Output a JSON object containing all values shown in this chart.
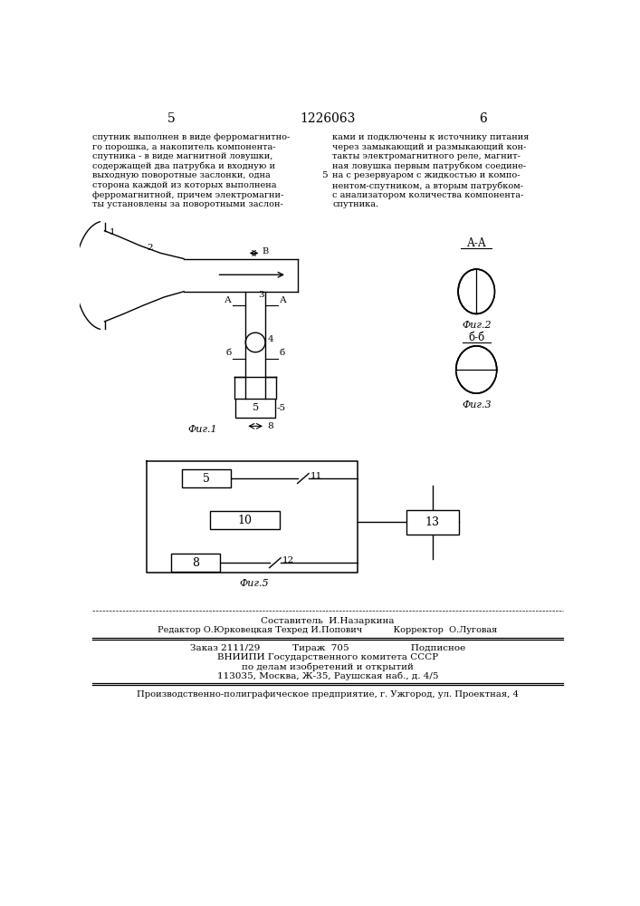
{
  "page_number_left": "5",
  "page_number_center": "1226063",
  "page_number_right": "6",
  "text_left": [
    "спутник выполнен в виде ферромагнитно-",
    "го порошка, а накопитель компонента-",
    "спутника - в виде магнитной ловушки,",
    "содержащей два патрубка и входную и",
    "выходную поворотные заслонки, одна",
    "сторона каждой из которых выполнена",
    "ферромагнитной, причем электромагни-",
    "ты установлены за поворотными заслон-"
  ],
  "text_right": [
    "ками и подключены к источнику питания",
    "через замыкающий и размыкающий кон-",
    "такты электромагнитного реле, магнит-",
    "ная ловушка первым патрубком соедине-",
    "на с резервуаром с жидкостью и компо-",
    "нентом-спутником, а вторым патрубком-",
    "с анализатором количества компонента-",
    "спутника."
  ],
  "line5_label": "5",
  "section_aa": "А-А",
  "fig2_label": "Фиг.2",
  "section_bb": "б-б",
  "fig3_label": "Фиг.3",
  "fig1_label": "Фиг.1",
  "fig5_label": "Фиг.5",
  "block5_label": "5",
  "block8_label": "8",
  "block10_label": "10",
  "block13_label": "13",
  "wire_label_11": "11",
  "wire_label_12": "12",
  "label_1": "1",
  "label_2": "2",
  "label_3": "3",
  "label_4": "4",
  "label_5": "5",
  "label_6_dim": "6",
  "label_8_dim": "8",
  "label_B": "В",
  "footer_line1": "Составитель  И.Назаркина",
  "footer_line2": "Редактор О.Юрковецкая Техред И.Попович           Корректор  О.Луговая",
  "footer_line3": "Заказ 2111/29           Тираж  705                     Подписное",
  "footer_line4": "ВНИИПИ Государственного комитета СССР",
  "footer_line5": "по делам изобретений и открытий",
  "footer_line6": "113035, Москва, Ж-35, Раушская наб., д. 4/5",
  "footer_line7": "Производственно-полиграфическое предприятие, г. Ужгород, ул. Проектная, 4",
  "bg_color": "#ffffff",
  "text_color": "#000000"
}
